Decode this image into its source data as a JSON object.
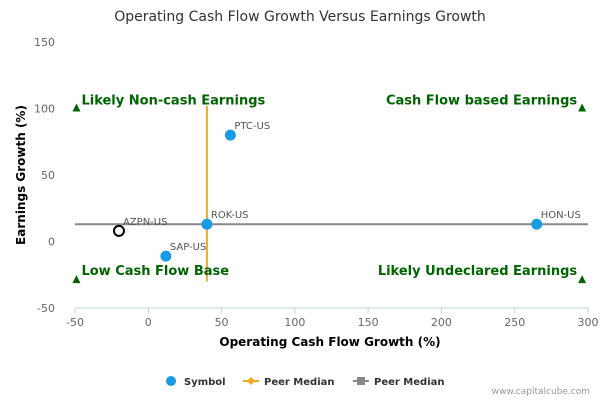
{
  "chart_data": {
    "type": "scatter",
    "title": "Operating Cash Flow Growth Versus Earnings Growth",
    "xlabel": "Operating Cash Flow Growth (%)",
    "ylabel": "Earnings Growth (%)",
    "xlim": [
      -50,
      300
    ],
    "ylim": [
      -50,
      150
    ],
    "x_ticks": [
      -50,
      0,
      50,
      100,
      150,
      200,
      250,
      300
    ],
    "y_ticks": [
      -50,
      0,
      50,
      100,
      150
    ],
    "grid": false,
    "points": [
      {
        "label": "PTC-US",
        "x": 56,
        "y": 80,
        "style": "filled",
        "color": "#1a9be6"
      },
      {
        "label": "ROK-US",
        "x": 40,
        "y": 13,
        "style": "filled",
        "color": "#1a9be6"
      },
      {
        "label": "HON-US",
        "x": 265,
        "y": 13,
        "style": "filled",
        "color": "#1a9be6"
      },
      {
        "label": "SAP-US",
        "x": 12,
        "y": -11,
        "style": "filled",
        "color": "#1a9be6"
      },
      {
        "label": "AZPN-US",
        "x": -20,
        "y": 8,
        "style": "hollow",
        "color": "#000000"
      }
    ],
    "median_lines": {
      "vertical": {
        "x": 40,
        "y_range": [
          -30,
          102
        ],
        "color": "#f5a623"
      },
      "horizontal": {
        "y": 13,
        "x_range": [
          -50,
          300
        ],
        "color": "#888888"
      }
    },
    "quadrant_labels": [
      {
        "text": "Likely Non-cash Earnings",
        "corner": "top-left",
        "marker_x": -49,
        "marker_y": 100
      },
      {
        "text": "Cash Flow based Earnings",
        "corner": "top-right",
        "marker_x": 296,
        "marker_y": 100
      },
      {
        "text": "Low Cash Flow Base",
        "corner": "bottom-left",
        "marker_x": -49,
        "marker_y": -29
      },
      {
        "text": "Likely Undeclared Earnings",
        "corner": "bottom-right",
        "marker_x": 296,
        "marker_y": -29
      }
    ],
    "legend": {
      "placement": "bottom",
      "items": [
        {
          "label": "Symbol",
          "kind": "dot",
          "color": "#1a9be6"
        },
        {
          "label": "Peer Median",
          "kind": "line-diamond",
          "color": "#f5a623"
        },
        {
          "label": "Peer Median",
          "kind": "line-square",
          "color": "#888888"
        }
      ]
    },
    "credit": "www.capitalcube.com"
  }
}
